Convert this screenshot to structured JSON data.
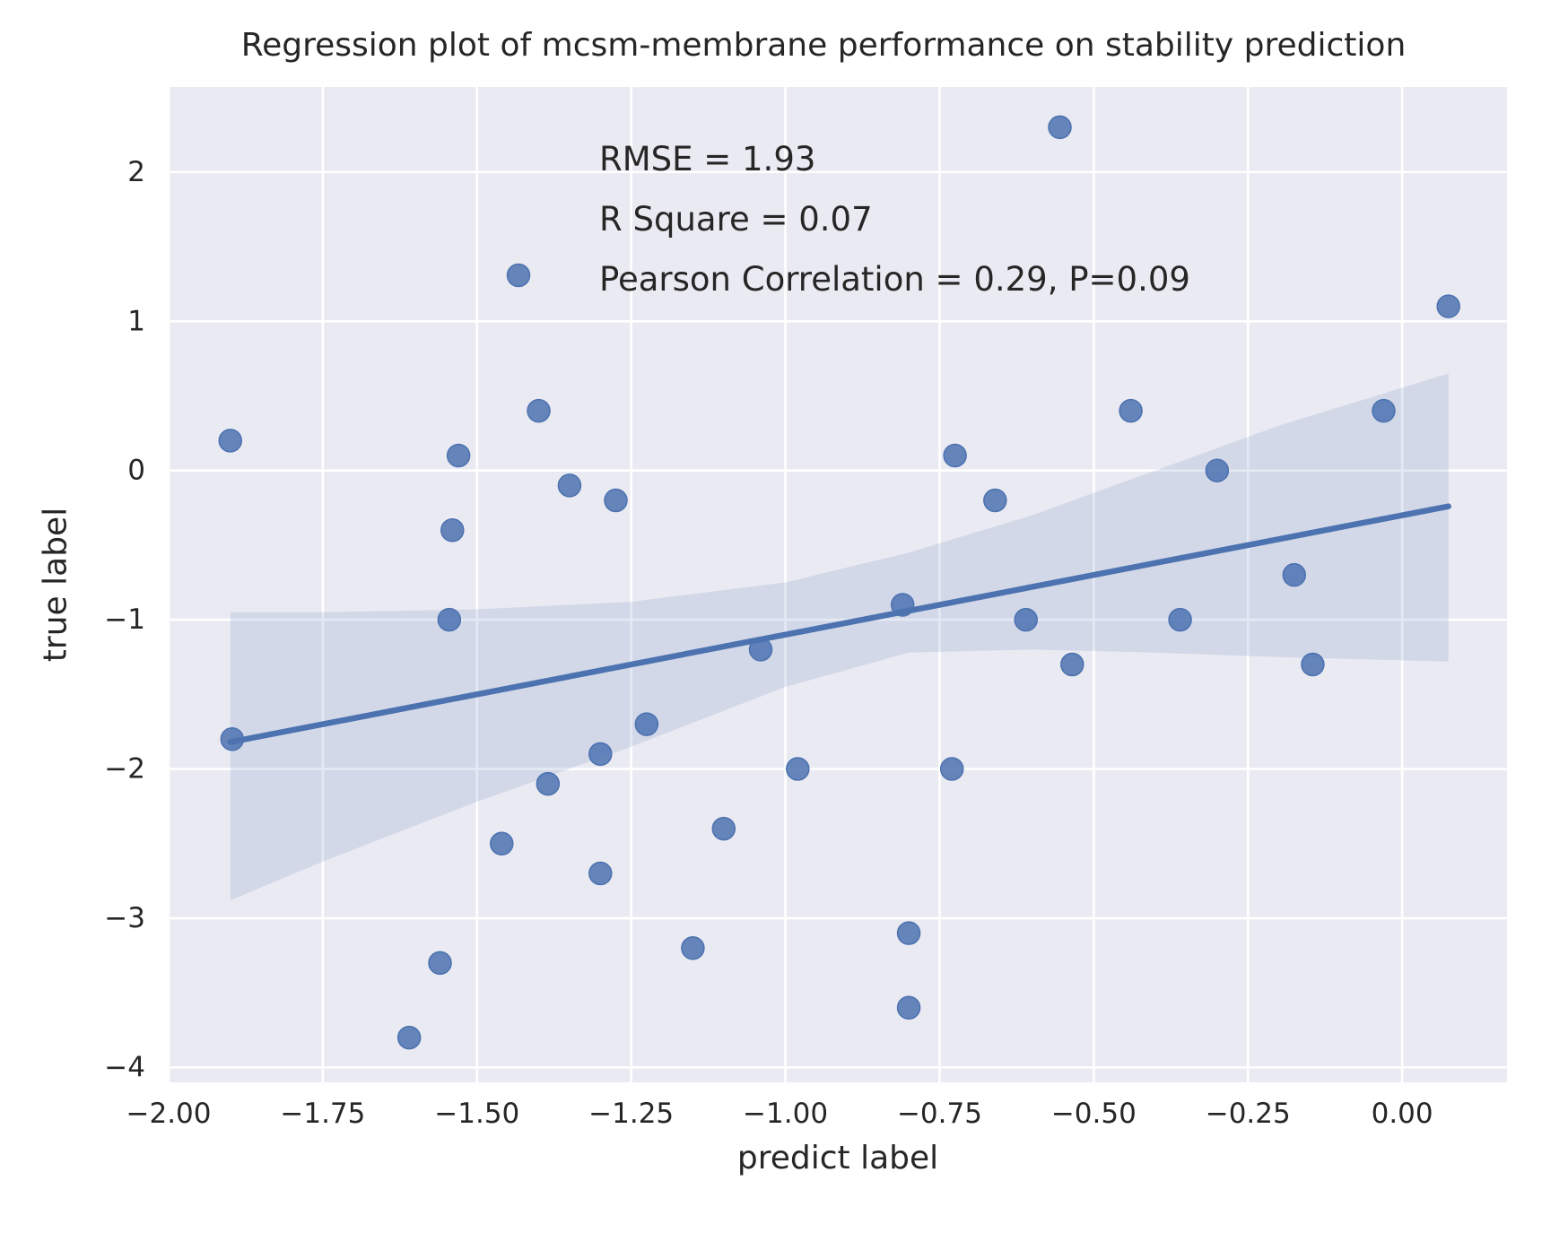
{
  "chart_data": {
    "type": "scatter",
    "title": "Regression plot of mcsm-membrane performance on stability prediction",
    "xlabel": "predict label",
    "ylabel": "true label",
    "xlim": [
      -2.0,
      0.17
    ],
    "ylim": [
      -4.1,
      2.57
    ],
    "xticks": [
      -2.0,
      -1.75,
      -1.5,
      -1.25,
      -1.0,
      -0.75,
      -0.5,
      -0.25,
      0.0
    ],
    "xtick_labels": [
      "−2.00",
      "−1.75",
      "−1.50",
      "−1.25",
      "−1.00",
      "−0.75",
      "−0.50",
      "−0.25",
      "0.00"
    ],
    "yticks": [
      -4,
      -3,
      -2,
      -1,
      0,
      1,
      2
    ],
    "ytick_labels": [
      "−4",
      "−3",
      "−2",
      "−1",
      "0",
      "1",
      "2"
    ],
    "grid": true,
    "background": "#eaeaf2",
    "point_color": "#4c72b0",
    "points": [
      {
        "x": -1.9,
        "y": 0.2
      },
      {
        "x": -1.897,
        "y": -1.8
      },
      {
        "x": -1.61,
        "y": -3.8
      },
      {
        "x": -1.56,
        "y": -3.3
      },
      {
        "x": -1.545,
        "y": -1.0
      },
      {
        "x": -1.54,
        "y": -0.4
      },
      {
        "x": -1.53,
        "y": 0.1
      },
      {
        "x": -1.46,
        "y": -2.5
      },
      {
        "x": -1.4,
        "y": 0.4
      },
      {
        "x": -1.385,
        "y": -2.1
      },
      {
        "x": -1.35,
        "y": -0.1
      },
      {
        "x": -1.3,
        "y": -1.9
      },
      {
        "x": -1.3,
        "y": -2.7
      },
      {
        "x": -1.275,
        "y": -0.2
      },
      {
        "x": -1.225,
        "y": -1.7
      },
      {
        "x": -1.15,
        "y": -3.2
      },
      {
        "x": -1.1,
        "y": -2.4
      },
      {
        "x": -1.04,
        "y": -1.2
      },
      {
        "x": -0.98,
        "y": -2.0
      },
      {
        "x": -0.81,
        "y": -0.9
      },
      {
        "x": -0.8,
        "y": -3.1
      },
      {
        "x": -0.8,
        "y": -3.6
      },
      {
        "x": -0.73,
        "y": -2.0
      },
      {
        "x": -0.725,
        "y": 0.1
      },
      {
        "x": -0.66,
        "y": -0.2
      },
      {
        "x": -0.61,
        "y": -1.0
      },
      {
        "x": -0.555,
        "y": 2.3
      },
      {
        "x": -0.535,
        "y": -1.3
      },
      {
        "x": -0.44,
        "y": 0.4
      },
      {
        "x": -0.36,
        "y": -1.0
      },
      {
        "x": -0.3,
        "y": 0.0
      },
      {
        "x": -0.175,
        "y": -0.7
      },
      {
        "x": -0.145,
        "y": -1.3
      },
      {
        "x": -0.03,
        "y": 0.4
      },
      {
        "x": 0.075,
        "y": 1.1
      }
    ],
    "regression_line": {
      "x": [
        -1.9,
        0.075
      ],
      "y": [
        -1.82,
        -0.24
      ]
    },
    "confidence_band": {
      "x": [
        -1.9,
        -1.75,
        -1.5,
        -1.25,
        -1.0,
        -0.8,
        -0.6,
        -0.4,
        -0.2,
        0.075
      ],
      "upper": [
        -0.95,
        -0.95,
        -0.93,
        -0.88,
        -0.75,
        -0.55,
        -0.3,
        0.0,
        0.3,
        0.65
      ],
      "lower": [
        -2.88,
        -2.62,
        -2.22,
        -1.85,
        -1.45,
        -1.22,
        -1.2,
        -1.22,
        -1.25,
        -1.28
      ]
    },
    "legend": {
      "placement": "top-center",
      "lines": [
        "RMSE = 1.93",
        "R Square = 0.07",
        "Pearson Correlation = 0.29, P=0.09"
      ]
    }
  }
}
